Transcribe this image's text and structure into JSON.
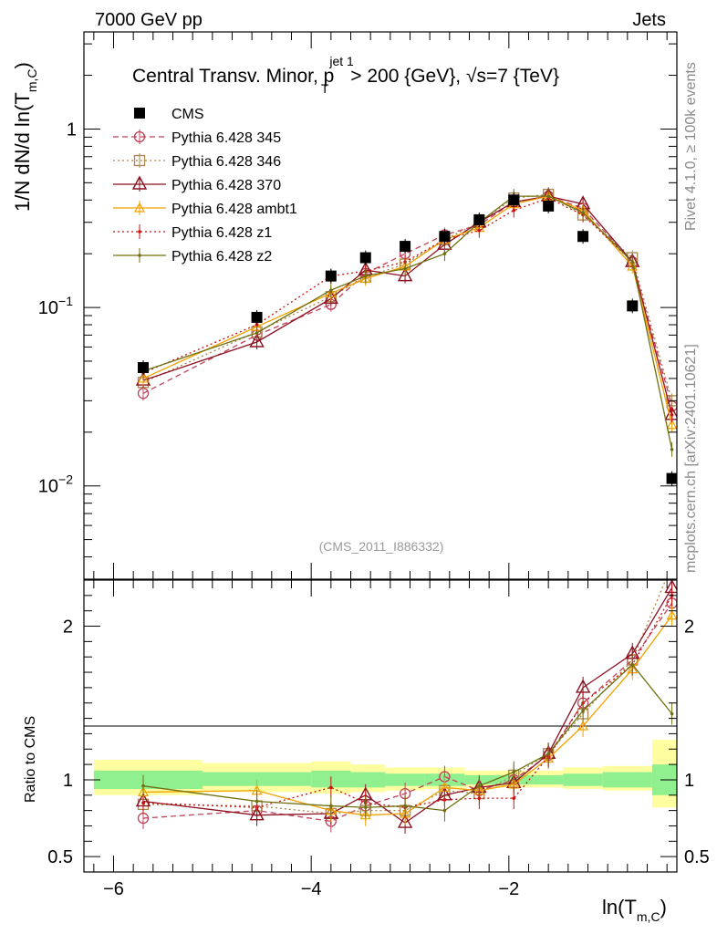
{
  "header": {
    "left": "7000 GeV pp",
    "right": "Jets"
  },
  "side_labels": {
    "rivet": "Rivet 4.1.0, ≥ 100k events",
    "mcplots": "mcplots.cern.ch [arXiv:2401.10621]"
  },
  "watermark": "(CMS_2011_I886332)",
  "main_title": "Central Transv. Minor, p_T^{jet 1} > 200 {GeV}, √s=7 {TeV}",
  "title_parts": {
    "a": "Central Transv. Minor, p",
    "sub": "T",
    "sup": "jet 1",
    "b": " > 200 {GeV}, ",
    "sqrt": "√",
    "c": "s=7 {TeV}"
  },
  "ylabel_main": {
    "pre": "1/N    dN/d ln(T",
    "sub": "m,C",
    "post": ")"
  },
  "ylabel_ratio": "Ratio to CMS",
  "xlabel": {
    "pre": "ln(T",
    "sub": "m,C",
    "post": ")"
  },
  "colors": {
    "cms": "#000000",
    "p345": "#c0405a",
    "p346": "#a8864a",
    "p370": "#8b1020",
    "ambt1": "#f0a000",
    "z1": "#cc1010",
    "z2": "#707010",
    "band_inner": "#90f090",
    "band_outer": "#fefea0"
  },
  "chart_data": {
    "type": "line",
    "main": {
      "yscale": "log",
      "ylim": [
        0.003,
        3.5
      ],
      "yticks": [
        "10^{-2}",
        "10^{-1}",
        "1"
      ]
    },
    "ratio": {
      "ylim": [
        0.4,
        2.3
      ],
      "yticks": [
        "0.5",
        "1",
        "2"
      ]
    },
    "xlim": [
      -6.3,
      -0.3
    ],
    "xticks": [
      "−6",
      "−4",
      "−2"
    ],
    "x": [
      -5.7,
      -4.55,
      -3.8,
      -3.45,
      -3.05,
      -2.65,
      -2.3,
      -1.95,
      -1.6,
      -1.25,
      -0.75,
      -0.35
    ],
    "series": [
      {
        "name": "CMS",
        "key": "cms",
        "marker": "square",
        "values": [
          0.046,
          0.088,
          0.15,
          0.19,
          0.22,
          0.25,
          0.31,
          0.4,
          0.37,
          0.25,
          0.102,
          0.011
        ],
        "ratio": [
          1,
          1,
          1,
          1,
          1,
          1,
          1,
          1,
          1,
          1,
          1,
          1
        ]
      },
      {
        "name": "Pythia 6.428 345",
        "key": "p345",
        "marker": "circle",
        "dash": "6,4",
        "values": [
          0.033,
          0.07,
          0.104,
          0.155,
          0.2,
          0.255,
          0.29,
          0.39,
          0.42,
          0.36,
          0.18,
          0.028
        ],
        "ratio": [
          0.75,
          0.8,
          0.73,
          0.83,
          0.91,
          1.02,
          0.93,
          1.0,
          1.16,
          1.5,
          1.78,
          2.15
        ]
      },
      {
        "name": "Pythia 6.428 346",
        "key": "p346",
        "marker": "square-open",
        "dash": "2,3",
        "values": [
          0.038,
          0.073,
          0.115,
          0.148,
          0.175,
          0.24,
          0.3,
          0.41,
          0.43,
          0.33,
          0.19,
          0.03
        ],
        "ratio": [
          0.84,
          0.83,
          0.78,
          0.8,
          0.8,
          0.93,
          0.91,
          1.03,
          1.17,
          1.43,
          1.78,
          2.4
        ]
      },
      {
        "name": "Pythia 6.428 370",
        "key": "p370",
        "marker": "triangle",
        "values": [
          0.039,
          0.064,
          0.112,
          0.162,
          0.15,
          0.225,
          0.3,
          0.39,
          0.42,
          0.38,
          0.18,
          0.025
        ],
        "ratio": [
          0.86,
          0.77,
          0.78,
          0.9,
          0.72,
          0.9,
          0.95,
          0.98,
          1.17,
          1.6,
          1.82,
          2.25
        ]
      },
      {
        "name": "Pythia 6.428 ambt1",
        "key": "ambt1",
        "marker": "triangle-small",
        "values": [
          0.04,
          0.078,
          0.12,
          0.145,
          0.17,
          0.24,
          0.28,
          0.38,
          0.42,
          0.35,
          0.17,
          0.022
        ],
        "ratio": [
          0.92,
          0.93,
          0.8,
          0.77,
          0.78,
          0.95,
          0.93,
          0.97,
          1.14,
          1.35,
          1.72,
          2.07
        ]
      },
      {
        "name": "Pythia 6.428 z1",
        "key": "z1",
        "marker": "dot",
        "dash": "2,3",
        "values": [
          0.043,
          0.08,
          0.15,
          0.16,
          0.18,
          0.24,
          0.27,
          0.35,
          0.41,
          0.33,
          0.18,
          0.025
        ],
        "ratio": [
          0.85,
          0.82,
          0.95,
          0.85,
          0.82,
          0.87,
          0.88,
          0.88,
          1.15,
          1.5,
          1.75,
          2.2
        ]
      },
      {
        "name": "Pythia 6.428 z2",
        "key": "z2",
        "marker": "dot",
        "values": [
          0.044,
          0.072,
          0.125,
          0.15,
          0.165,
          0.2,
          0.3,
          0.42,
          0.42,
          0.34,
          0.18,
          0.016
        ],
        "ratio": [
          0.96,
          0.86,
          0.83,
          0.82,
          0.83,
          0.8,
          0.96,
          1.05,
          1.17,
          1.45,
          1.75,
          1.43
        ]
      }
    ],
    "ratio_band": {
      "edges": [
        -6.2,
        -5.1,
        -4.0,
        -3.6,
        -3.25,
        -2.85,
        -2.45,
        -2.15,
        -1.75,
        -1.45,
        -1.05,
        -0.55,
        -0.3
      ],
      "inner": [
        [
          0.94,
          1.06
        ],
        [
          0.96,
          1.05
        ],
        [
          0.95,
          1.06
        ],
        [
          0.95,
          1.05
        ],
        [
          0.96,
          1.04
        ],
        [
          0.96,
          1.04
        ],
        [
          0.97,
          1.03
        ],
        [
          0.97,
          1.03
        ],
        [
          0.97,
          1.03
        ],
        [
          0.96,
          1.04
        ],
        [
          0.95,
          1.05
        ],
        [
          0.9,
          1.1
        ]
      ],
      "outer": [
        [
          0.9,
          1.13
        ],
        [
          0.92,
          1.11
        ],
        [
          0.91,
          1.12
        ],
        [
          0.92,
          1.1
        ],
        [
          0.93,
          1.08
        ],
        [
          0.94,
          1.08
        ],
        [
          0.95,
          1.06
        ],
        [
          0.95,
          1.06
        ],
        [
          0.95,
          1.06
        ],
        [
          0.94,
          1.08
        ],
        [
          0.93,
          1.09
        ],
        [
          0.82,
          1.26
        ]
      ]
    }
  }
}
